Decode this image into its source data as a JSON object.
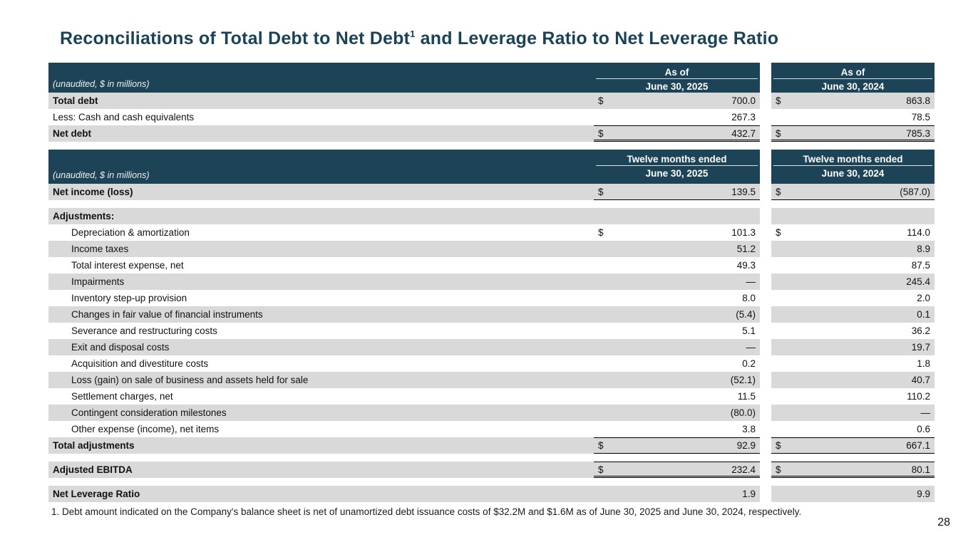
{
  "title": {
    "main": "Reconciliations of Total Debt to Net Debt",
    "sup": "1",
    "rest": " and Leverage Ratio to Net Leverage Ratio"
  },
  "table1": {
    "header": {
      "unaudited": "(unaudited, $ in millions)",
      "col1_line1": "As of",
      "col1_line2": "June 30, 2025",
      "col2_line1": "As of",
      "col2_line2": "June 30, 2024"
    },
    "rows": [
      {
        "label": "Total debt",
        "bold": true,
        "shade": true,
        "d1": "$",
        "v1": "700.0",
        "d2": "$",
        "v2": "863.8"
      },
      {
        "label": "Less: Cash and cash equivalents",
        "v1": "267.3",
        "v2": "78.5"
      },
      {
        "label": "Net debt",
        "bold": true,
        "shade": true,
        "d1": "$",
        "v1": "432.7",
        "d2": "$",
        "v2": "785.3",
        "bt": true,
        "bb": "double"
      }
    ]
  },
  "table2": {
    "header": {
      "unaudited": "(unaudited, $ in millions)",
      "col1_line1": "Twelve months ended",
      "col1_line2": "June 30, 2025",
      "col2_line1": "Twelve months ended",
      "col2_line2": "June 30, 2024"
    },
    "rows": [
      {
        "label": "Net income (loss)",
        "bold": true,
        "shade": true,
        "d1": "$",
        "v1": "139.5",
        "d2": "$",
        "v2": "(587.0)",
        "bb": "single"
      },
      {
        "spacer": true
      },
      {
        "label": "Adjustments:",
        "bold": true,
        "shade": true
      },
      {
        "label": "Depreciation & amortization",
        "indent": true,
        "d1": "$",
        "v1": "101.3",
        "d2": "$",
        "v2": "114.0"
      },
      {
        "label": "Income taxes",
        "indent": true,
        "shade": true,
        "v1": "51.2",
        "v2": "8.9"
      },
      {
        "label": "Total interest expense, net",
        "indent": true,
        "v1": "49.3",
        "v2": "87.5"
      },
      {
        "label": "Impairments",
        "indent": true,
        "shade": true,
        "v1": "—",
        "v2": "245.4"
      },
      {
        "label": "Inventory step-up provision",
        "indent": true,
        "v1": "8.0",
        "v2": "2.0"
      },
      {
        "label": "Changes in fair value of financial instruments",
        "indent": true,
        "shade": true,
        "v1": "(5.4)",
        "v2": "0.1"
      },
      {
        "label": "Severance and restructuring costs",
        "indent": true,
        "v1": "5.1",
        "v2": "36.2"
      },
      {
        "label": "Exit and disposal costs",
        "indent": true,
        "shade": true,
        "v1": "—",
        "v2": "19.7"
      },
      {
        "label": "Acquisition and divestiture costs",
        "indent": true,
        "v1": "0.2",
        "v2": "1.8"
      },
      {
        "label": "Loss (gain) on sale of business and assets held for sale",
        "indent": true,
        "shade": true,
        "v1": "(52.1)",
        "v2": "40.7"
      },
      {
        "label": "Settlement charges, net",
        "indent": true,
        "v1": "11.5",
        "v2": "110.2"
      },
      {
        "label": "Contingent consideration milestones",
        "indent": true,
        "shade": true,
        "v1": "(80.0)",
        "v2": "—"
      },
      {
        "label": "Other expense (income), net items",
        "indent": true,
        "v1": "3.8",
        "v2": "0.6"
      },
      {
        "label": "Total adjustments",
        "bold": true,
        "shade": true,
        "d1": "$",
        "v1": "92.9",
        "d2": "$",
        "v2": "667.1",
        "bt": true,
        "bb": "single"
      },
      {
        "spacer": true
      },
      {
        "label": "Adjusted EBITDA",
        "bold": true,
        "shade": true,
        "d1": "$",
        "v1": "232.4",
        "d2": "$",
        "v2": "80.1",
        "bt": true,
        "bb": "double"
      },
      {
        "spacer": true
      },
      {
        "label": "Net Leverage Ratio",
        "bold": true,
        "shade": true,
        "v1": "1.9",
        "v2": "9.9"
      }
    ]
  },
  "footnote": "1. Debt amount indicated on the Company's balance sheet is net of unamortized debt issuance costs of $32.2M and $1.6M as of June 30, 2025 and June 30, 2024, respectively.",
  "page_number": "28"
}
